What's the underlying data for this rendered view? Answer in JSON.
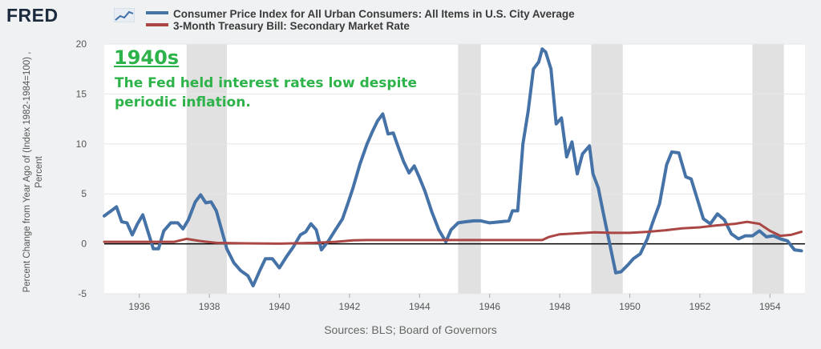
{
  "header": {
    "logo_text": "FRED",
    "series": [
      {
        "label": "Consumer Price Index for All Urban Consumers: All Items in U.S. City Average",
        "color": "#4572a7"
      },
      {
        "label": "3-Month Treasury Bill: Secondary Market Rate",
        "color": "#aa4643"
      }
    ]
  },
  "footer": {
    "source": "Sources: BLS; Board of Governors"
  },
  "annotation": {
    "heading": "1940s",
    "text": "The Fed held interest rates low despite periodic inflation.",
    "color": "#2db34a"
  },
  "chart_data": {
    "type": "line",
    "ylabel": "Percent Change from Year Ago of (Index 1982-1984=100) ,\nPercent",
    "xlim": [
      1935.0,
      1955.0
    ],
    "ylim": [
      -5,
      20
    ],
    "x_ticks": [
      1936,
      1938,
      1940,
      1942,
      1944,
      1946,
      1948,
      1950,
      1952,
      1954
    ],
    "y_ticks": [
      -5,
      0,
      5,
      10,
      15,
      20
    ],
    "zero_line": true,
    "recessions": [
      [
        1937.35,
        1938.5
      ],
      [
        1945.1,
        1945.75
      ],
      [
        1948.9,
        1949.8
      ],
      [
        1953.5,
        1954.4
      ]
    ],
    "series": [
      {
        "name": "Consumer Price Index for All Urban Consumers: All Items in U.S. City Average",
        "color": "#4572a7",
        "points": [
          [
            1935.0,
            2.8
          ],
          [
            1935.2,
            3.3
          ],
          [
            1935.35,
            3.7
          ],
          [
            1935.5,
            2.2
          ],
          [
            1935.65,
            2.1
          ],
          [
            1935.8,
            0.9
          ],
          [
            1935.95,
            2.0
          ],
          [
            1936.1,
            2.9
          ],
          [
            1936.25,
            1.2
          ],
          [
            1936.4,
            -0.5
          ],
          [
            1936.55,
            -0.5
          ],
          [
            1936.7,
            1.3
          ],
          [
            1936.9,
            2.1
          ],
          [
            1937.1,
            2.1
          ],
          [
            1937.25,
            1.5
          ],
          [
            1937.4,
            2.4
          ],
          [
            1937.6,
            4.2
          ],
          [
            1937.75,
            4.9
          ],
          [
            1937.9,
            4.1
          ],
          [
            1938.05,
            4.2
          ],
          [
            1938.2,
            3.3
          ],
          [
            1938.35,
            1.4
          ],
          [
            1938.5,
            -0.5
          ],
          [
            1938.7,
            -1.9
          ],
          [
            1938.9,
            -2.7
          ],
          [
            1939.1,
            -3.2
          ],
          [
            1939.25,
            -4.2
          ],
          [
            1939.45,
            -2.6
          ],
          [
            1939.6,
            -1.5
          ],
          [
            1939.8,
            -1.5
          ],
          [
            1940.0,
            -2.4
          ],
          [
            1940.2,
            -1.3
          ],
          [
            1940.4,
            -0.3
          ],
          [
            1940.6,
            0.9
          ],
          [
            1940.75,
            1.2
          ],
          [
            1940.9,
            2.0
          ],
          [
            1941.05,
            1.4
          ],
          [
            1941.2,
            -0.6
          ],
          [
            1941.4,
            0.3
          ],
          [
            1941.6,
            1.4
          ],
          [
            1941.8,
            2.5
          ],
          [
            1941.95,
            4.0
          ],
          [
            1942.1,
            5.6
          ],
          [
            1942.3,
            8.0
          ],
          [
            1942.5,
            10.0
          ],
          [
            1942.65,
            11.2
          ],
          [
            1942.8,
            12.3
          ],
          [
            1942.95,
            13.0
          ],
          [
            1943.1,
            11.0
          ],
          [
            1943.25,
            11.1
          ],
          [
            1943.4,
            9.6
          ],
          [
            1943.55,
            8.2
          ],
          [
            1943.7,
            7.1
          ],
          [
            1943.85,
            7.8
          ],
          [
            1944.0,
            6.6
          ],
          [
            1944.15,
            5.3
          ],
          [
            1944.35,
            3.2
          ],
          [
            1944.55,
            1.4
          ],
          [
            1944.75,
            0.2
          ],
          [
            1944.9,
            1.4
          ],
          [
            1945.1,
            2.1
          ],
          [
            1945.3,
            2.2
          ],
          [
            1945.55,
            2.3
          ],
          [
            1945.75,
            2.3
          ],
          [
            1946.0,
            2.1
          ],
          [
            1946.3,
            2.2
          ],
          [
            1946.55,
            2.3
          ],
          [
            1946.65,
            3.3
          ],
          [
            1946.8,
            3.3
          ],
          [
            1946.95,
            10.0
          ],
          [
            1947.1,
            13.3
          ],
          [
            1947.25,
            17.5
          ],
          [
            1947.4,
            18.2
          ],
          [
            1947.5,
            19.5
          ],
          [
            1947.6,
            19.2
          ],
          [
            1947.75,
            17.5
          ],
          [
            1947.9,
            12.0
          ],
          [
            1948.05,
            12.6
          ],
          [
            1948.2,
            8.7
          ],
          [
            1948.35,
            10.2
          ],
          [
            1948.5,
            7.0
          ],
          [
            1948.65,
            9.0
          ],
          [
            1948.85,
            9.8
          ],
          [
            1948.95,
            7.0
          ],
          [
            1949.1,
            5.6
          ],
          [
            1949.25,
            3.0
          ],
          [
            1949.45,
            -0.4
          ],
          [
            1949.6,
            -2.9
          ],
          [
            1949.75,
            -2.8
          ],
          [
            1949.95,
            -2.1
          ],
          [
            1950.1,
            -1.5
          ],
          [
            1950.3,
            -1.0
          ],
          [
            1950.5,
            0.5
          ],
          [
            1950.65,
            2.1
          ],
          [
            1950.85,
            4.0
          ],
          [
            1951.05,
            7.9
          ],
          [
            1951.2,
            9.2
          ],
          [
            1951.4,
            9.1
          ],
          [
            1951.6,
            6.7
          ],
          [
            1951.75,
            6.5
          ],
          [
            1951.9,
            4.8
          ],
          [
            1952.1,
            2.5
          ],
          [
            1952.3,
            2.0
          ],
          [
            1952.5,
            3.0
          ],
          [
            1952.7,
            2.4
          ],
          [
            1952.9,
            1.0
          ],
          [
            1953.1,
            0.5
          ],
          [
            1953.3,
            0.8
          ],
          [
            1953.5,
            0.8
          ],
          [
            1953.7,
            1.3
          ],
          [
            1953.9,
            0.7
          ],
          [
            1954.1,
            0.8
          ],
          [
            1954.3,
            0.5
          ],
          [
            1954.5,
            0.3
          ],
          [
            1954.7,
            -0.6
          ],
          [
            1954.9,
            -0.7
          ]
        ]
      },
      {
        "name": "3-Month Treasury Bill: Secondary Market Rate",
        "color": "#aa4643",
        "points": [
          [
            1935.0,
            0.2
          ],
          [
            1936.0,
            0.2
          ],
          [
            1937.0,
            0.2
          ],
          [
            1937.35,
            0.5
          ],
          [
            1937.7,
            0.3
          ],
          [
            1938.2,
            0.1
          ],
          [
            1939.0,
            0.05
          ],
          [
            1940.0,
            0.02
          ],
          [
            1941.0,
            0.1
          ],
          [
            1941.6,
            0.2
          ],
          [
            1942.1,
            0.35
          ],
          [
            1942.5,
            0.38
          ],
          [
            1943.0,
            0.38
          ],
          [
            1944.0,
            0.38
          ],
          [
            1945.0,
            0.38
          ],
          [
            1946.0,
            0.38
          ],
          [
            1947.0,
            0.38
          ],
          [
            1947.5,
            0.38
          ],
          [
            1947.7,
            0.7
          ],
          [
            1948.0,
            0.95
          ],
          [
            1948.5,
            1.05
          ],
          [
            1949.0,
            1.15
          ],
          [
            1949.5,
            1.1
          ],
          [
            1950.0,
            1.1
          ],
          [
            1950.5,
            1.2
          ],
          [
            1951.0,
            1.35
          ],
          [
            1951.5,
            1.55
          ],
          [
            1952.0,
            1.65
          ],
          [
            1952.5,
            1.85
          ],
          [
            1953.0,
            2.0
          ],
          [
            1953.35,
            2.2
          ],
          [
            1953.7,
            2.0
          ],
          [
            1954.0,
            1.3
          ],
          [
            1954.3,
            0.8
          ],
          [
            1954.6,
            0.9
          ],
          [
            1954.9,
            1.2
          ]
        ]
      }
    ]
  }
}
